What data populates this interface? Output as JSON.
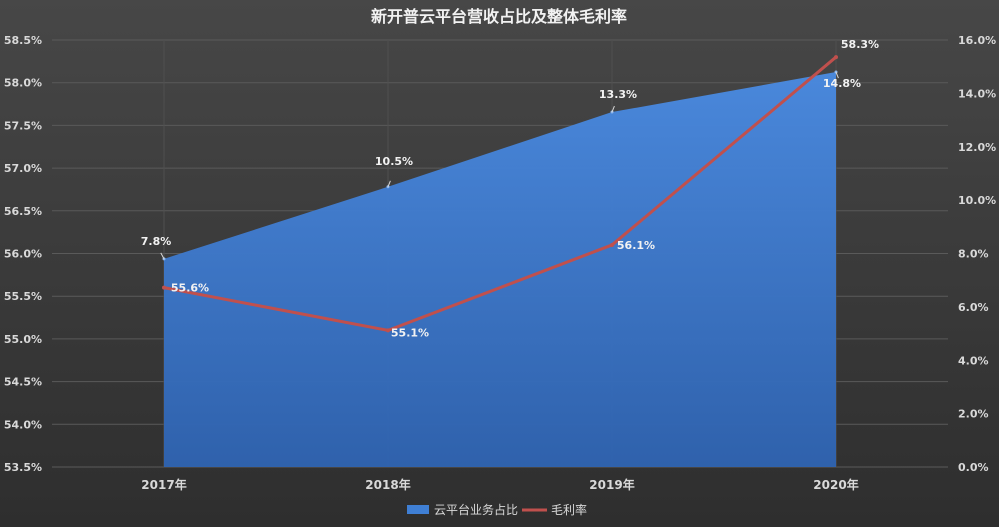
{
  "chart_data": {
    "type": "area",
    "title": "新开普云平台营收占比及整体毛利率",
    "categories": [
      "2017年",
      "2018年",
      "2019年",
      "2020年"
    ],
    "left_axis": {
      "min": 53.5,
      "max": 58.5,
      "step": 0.5,
      "tick_labels": [
        "53.5%",
        "54.0%",
        "54.5%",
        "55.0%",
        "55.5%",
        "56.0%",
        "56.5%",
        "57.0%",
        "57.5%",
        "58.0%",
        "58.5%"
      ]
    },
    "right_axis": {
      "min": 0,
      "max": 16,
      "step": 2,
      "tick_labels": [
        "0.0%",
        "2.0%",
        "4.0%",
        "6.0%",
        "8.0%",
        "10.0%",
        "12.0%",
        "14.0%",
        "16.0%"
      ]
    },
    "series": [
      {
        "name": "云平台业务占比",
        "type": "area",
        "axis": "right",
        "values": [
          7.8,
          10.5,
          13.3,
          14.8
        ],
        "labels": [
          "7.8%",
          "10.5%",
          "13.3%",
          "14.8%"
        ],
        "color": "#3f7fd4"
      },
      {
        "name": "毛利率",
        "type": "line",
        "axis": "left",
        "values": [
          55.6,
          55.1,
          56.1,
          58.3
        ],
        "labels": [
          "55.6%",
          "55.1%",
          "56.1%",
          "58.3%"
        ],
        "color": "#c0504d"
      }
    ],
    "grid": true,
    "legend": "bottom"
  }
}
